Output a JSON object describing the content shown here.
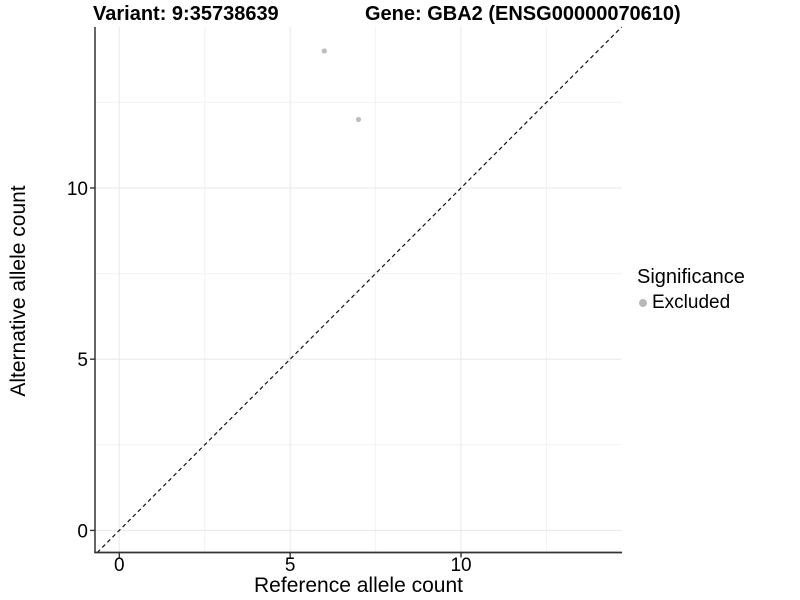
{
  "header": {
    "variant_title": "Variant: 9:35738639",
    "gene_title": "Gene: GBA2 (ENSG00000070610)"
  },
  "chart_data": {
    "type": "scatter",
    "title": "Variant: 9:35738639   Gene: GBA2 (ENSG00000070610)",
    "xlabel": "Reference allele count",
    "ylabel": "Alternative allele count",
    "xlim": [
      -0.71,
      14.71
    ],
    "ylim": [
      -0.645,
      14.7
    ],
    "x_major_ticks": [
      0,
      5,
      10
    ],
    "y_major_ticks": [
      0,
      5,
      10
    ],
    "x_minor_gridlines": [
      2.5,
      7.5,
      12.5
    ],
    "y_minor_gridlines": [
      2.5,
      7.5,
      12.5
    ],
    "grid": "major and minor, light grey on white panel",
    "identity_line": {
      "equation": "y = x",
      "style": "dashed",
      "color": "#111111"
    },
    "series": [
      {
        "name": "Excluded",
        "color": "#bdbdbd",
        "points": [
          {
            "x": 6,
            "y": 14
          },
          {
            "x": 7,
            "y": 12
          }
        ]
      }
    ],
    "legend": {
      "title": "Significance",
      "position": "right",
      "items": [
        {
          "label": "Excluded",
          "color": "#b9b9b9"
        }
      ]
    }
  },
  "colors": {
    "background": "#ffffff",
    "axis_line": "#333333",
    "tick_mark": "#333333",
    "grid_major": "#e8e8e8",
    "grid_minor": "#f3f3f3",
    "point": "#bdbdbd",
    "text": "#000000"
  }
}
